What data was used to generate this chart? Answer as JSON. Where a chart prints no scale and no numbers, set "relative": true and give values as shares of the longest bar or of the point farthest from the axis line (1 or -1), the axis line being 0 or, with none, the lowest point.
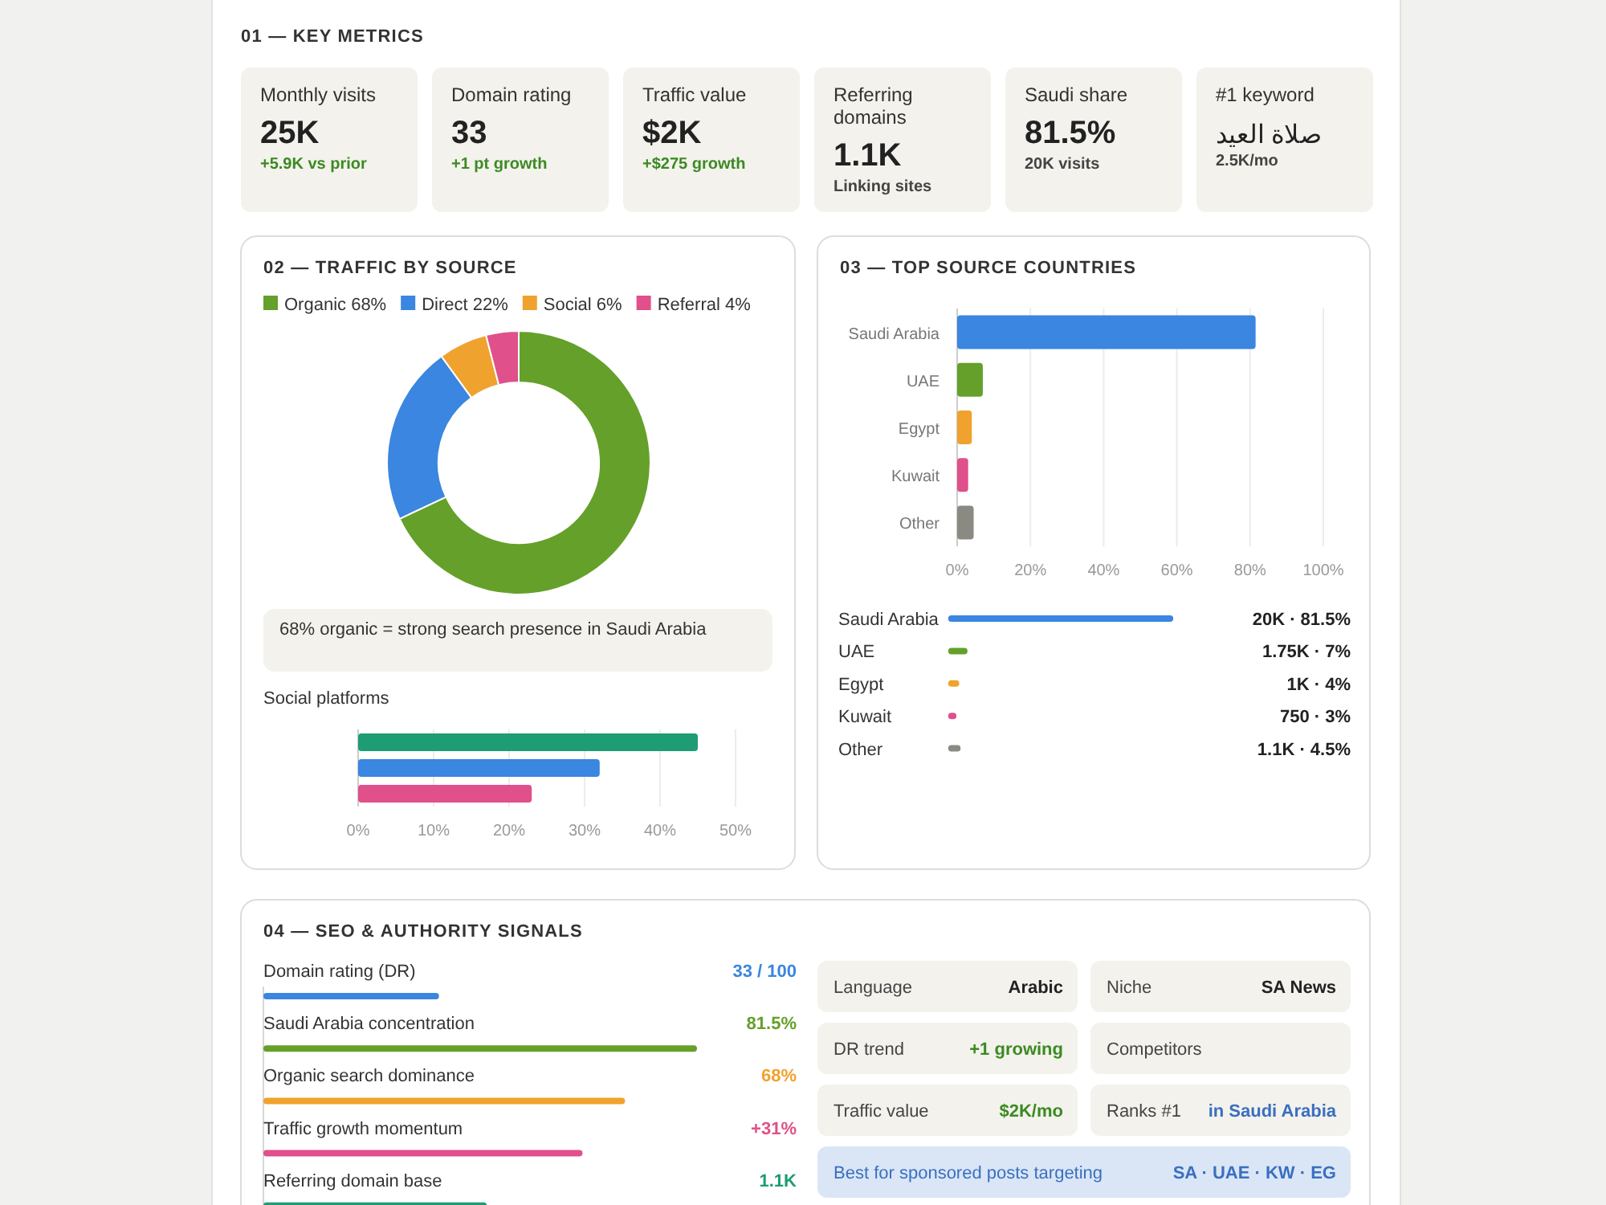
{
  "chart_data": [
    {
      "type": "other",
      "title": "01 — KEY METRICS",
      "annotations": [
        "Monthly visits",
        "25K",
        "+5.9K vs prior",
        "Domain rating",
        "33",
        "+1 pt growth",
        "Traffic value",
        "$2K",
        "+$275 growth",
        "Referring domains",
        "1.1K",
        "Linking sites",
        "Saudi share",
        "81.5%",
        "20K visits",
        "#1 keyword",
        "صلاة العيد",
        "2.5K/mo"
      ]
    },
    {
      "type": "donut",
      "title": "02 — TRAFFIC BY SOURCE",
      "categories": [
        "Organic",
        "Direct",
        "Social",
        "Referral"
      ],
      "values": [
        68,
        22,
        6,
        4
      ],
      "value_labels": [
        "68%",
        "22%",
        "6%",
        "4%"
      ],
      "colors": [
        "#65a02a",
        "#3a86e0",
        "#f0a22e",
        "#e0508a"
      ],
      "legend": "top",
      "annotations": [
        "68% organic = strong search presence in Saudi Arabia"
      ]
    },
    {
      "type": "bar",
      "orientation": "horizontal",
      "title": "Social platforms",
      "categories": [
        null,
        null,
        null
      ],
      "values": [
        45,
        32,
        23
      ],
      "colors": [
        "#1e9c74",
        "#3a86e0",
        "#e0508a"
      ],
      "xlim": [
        0,
        50
      ],
      "xticks": [
        {
          "value": 0,
          "label": "0%"
        },
        {
          "value": 10,
          "label": "10%"
        },
        {
          "value": 20,
          "label": "20%"
        },
        {
          "value": 30,
          "label": "30%"
        },
        {
          "value": 40,
          "label": "40%"
        },
        {
          "value": 50,
          "label": "50%"
        }
      ],
      "grid": "x"
    },
    {
      "type": "bar",
      "orientation": "horizontal",
      "title": "03 — TOP SOURCE COUNTRIES",
      "categories": [
        "Saudi Arabia",
        "UAE",
        "Egypt",
        "Kuwait",
        "Other"
      ],
      "values": [
        81.5,
        7,
        4,
        3,
        4.5
      ],
      "colors": [
        "#3a86e0",
        "#65a02a",
        "#f0a22e",
        "#e0508a",
        "#8a8a82"
      ],
      "xlim": [
        0,
        100
      ],
      "xticks": [
        {
          "value": 0,
          "label": "0%"
        },
        {
          "value": 20,
          "label": "20%"
        },
        {
          "value": 40,
          "label": "40%"
        },
        {
          "value": 60,
          "label": "60%"
        },
        {
          "value": 80,
          "label": "80%"
        },
        {
          "value": 100,
          "label": "100%"
        }
      ],
      "grid": "x"
    },
    {
      "type": "bar",
      "orientation": "horizontal",
      "categories": [
        "Saudi Arabia",
        "UAE",
        "Egypt",
        "Kuwait",
        "Other"
      ],
      "values": [
        81.5,
        7,
        4,
        3,
        4.5
      ],
      "colors": [
        "#3a86e0",
        "#65a02a",
        "#f0a22e",
        "#e0508a",
        "#8a8a82"
      ],
      "value_labels": [
        "20K · 81.5%",
        "1.75K · 7%",
        "1K · 4%",
        "750 · 3%",
        "1.1K · 4.5%"
      ]
    },
    {
      "type": "bar",
      "orientation": "horizontal",
      "title": "04 — SEO & AUTHORITY SIGNALS",
      "categories": [
        "Domain rating (DR)",
        "Saudi Arabia concentration",
        "Organic search dominance",
        "Traffic growth momentum",
        "Referring domain base"
      ],
      "relative": true,
      "values": [
        0.405,
        1,
        0.834,
        0.736,
        0.515
      ],
      "colors": [
        "#3a86e0",
        "#65a02a",
        "#f0a22e",
        "#e0508a",
        "#1e9c74"
      ],
      "annotations": [
        "33 / 100",
        "81.5%",
        "68%",
        "+31%",
        "1.1K"
      ]
    },
    {
      "type": "other",
      "annotations": [
        "Language",
        "Arabic",
        "Niche",
        "SA News",
        "DR trend",
        "+1 growing",
        "Competitors",
        null,
        "Traffic value",
        "$2K/mo",
        "Ranks #1",
        "in Saudi Arabia",
        "Best for sponsored posts targeting",
        "SA · UAE · KW · EG"
      ]
    }
  ]
}
